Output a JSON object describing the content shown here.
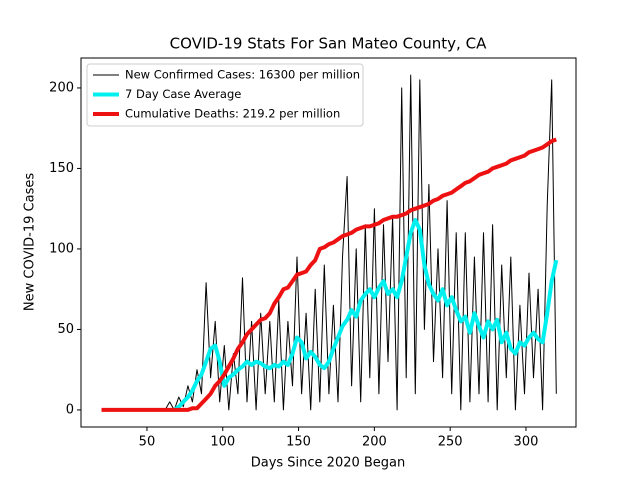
{
  "chart_data": {
    "type": "line",
    "title": "COVID-19 Stats For San Mateo County, CA",
    "xlabel": "Days Since 2020 Began",
    "ylabel": "New COVID-19 Cases",
    "xlim": [
      6.5,
      333
    ],
    "ylim": [
      -10.6,
      218.6
    ],
    "xticks": [
      50,
      100,
      150,
      200,
      250,
      300
    ],
    "yticks": [
      0,
      50,
      100,
      150,
      200
    ],
    "legend": "upper left",
    "x": [
      20,
      23,
      26,
      29,
      32,
      35,
      38,
      41,
      44,
      47,
      50,
      53,
      56,
      59,
      62,
      65,
      68,
      71,
      74,
      77,
      80,
      83,
      86,
      89,
      92,
      95,
      98,
      101,
      104,
      107,
      110,
      113,
      116,
      119,
      122,
      125,
      128,
      131,
      134,
      137,
      140,
      143,
      146,
      149,
      152,
      155,
      158,
      161,
      164,
      167,
      170,
      173,
      176,
      179,
      182,
      185,
      188,
      191,
      194,
      197,
      200,
      203,
      206,
      209,
      212,
      215,
      218,
      221,
      224,
      227,
      230,
      233,
      236,
      239,
      242,
      245,
      248,
      251,
      254,
      257,
      260,
      263,
      266,
      269,
      272,
      275,
      278,
      281,
      284,
      287,
      290,
      293,
      296,
      299,
      302,
      305,
      308,
      311,
      314,
      317,
      320
    ],
    "series": [
      {
        "name": "New Confirmed Cases: 16300 per million",
        "color": "#000000",
        "linewidth": 1,
        "values": [
          0,
          0,
          0,
          0,
          0,
          0,
          0,
          0,
          0,
          0,
          0,
          0,
          0,
          0,
          0,
          5,
          0,
          8,
          2,
          15,
          5,
          25,
          10,
          79,
          20,
          55,
          5,
          40,
          0,
          35,
          10,
          82,
          5,
          55,
          0,
          60,
          10,
          55,
          5,
          68,
          0,
          55,
          15,
          95,
          10,
          60,
          0,
          75,
          5,
          90,
          10,
          65,
          5,
          95,
          145,
          15,
          100,
          5,
          115,
          20,
          125,
          10,
          115,
          30,
          120,
          0,
          200,
          20,
          208,
          10,
          205,
          50,
          140,
          30,
          100,
          20,
          130,
          10,
          110,
          0,
          110,
          5,
          95,
          10,
          110,
          5,
          115,
          0,
          90,
          20,
          95,
          0,
          65,
          10,
          85,
          20,
          75,
          0,
          127,
          205,
          10
        ]
      },
      {
        "name": "7 Day Case Average",
        "color": "#00f0f0",
        "linewidth": 4,
        "values": [
          null,
          null,
          null,
          null,
          null,
          null,
          null,
          null,
          null,
          null,
          null,
          null,
          null,
          null,
          null,
          null,
          0,
          2,
          5,
          8,
          12,
          18,
          22,
          30,
          38,
          40,
          30,
          15,
          20,
          22,
          25,
          27,
          30,
          28,
          30,
          29,
          27,
          26,
          28,
          27,
          30,
          28,
          35,
          45,
          42,
          32,
          36,
          33,
          28,
          26,
          30,
          38,
          45,
          52,
          56,
          62,
          58,
          68,
          72,
          75,
          70,
          76,
          80,
          72,
          75,
          70,
          80,
          95,
          110,
          118,
          112,
          90,
          78,
          72,
          68,
          75,
          65,
          70,
          62,
          55,
          58,
          48,
          60,
          52,
          45,
          55,
          50,
          56,
          42,
          48,
          38,
          35,
          42,
          40,
          45,
          48,
          44,
          42,
          60,
          80,
          93
        ]
      },
      {
        "name": "Cumulative Deaths: 219.2 per million",
        "color": "#ee1111",
        "linewidth": 4,
        "values": [
          0,
          0,
          0,
          0,
          0,
          0,
          0,
          0,
          0,
          0,
          0,
          0,
          0,
          0,
          0,
          0,
          0,
          0,
          0,
          0,
          1,
          1,
          4,
          7,
          10,
          15,
          18,
          22,
          27,
          32,
          38,
          42,
          47,
          50,
          53,
          56,
          57,
          60,
          66,
          70,
          75,
          76,
          80,
          84,
          85,
          86,
          90,
          93,
          100,
          101,
          103,
          104,
          106,
          108,
          109,
          110,
          112,
          113,
          114,
          114,
          115,
          116,
          118,
          119,
          120,
          120,
          121,
          122,
          124,
          125,
          126,
          127,
          128,
          130,
          131,
          133,
          134,
          135,
          137,
          139,
          141,
          142,
          144,
          146,
          147,
          148,
          150,
          151,
          152,
          153,
          155,
          156,
          157,
          158,
          160,
          161,
          162,
          163,
          165,
          167,
          168
        ]
      }
    ]
  }
}
